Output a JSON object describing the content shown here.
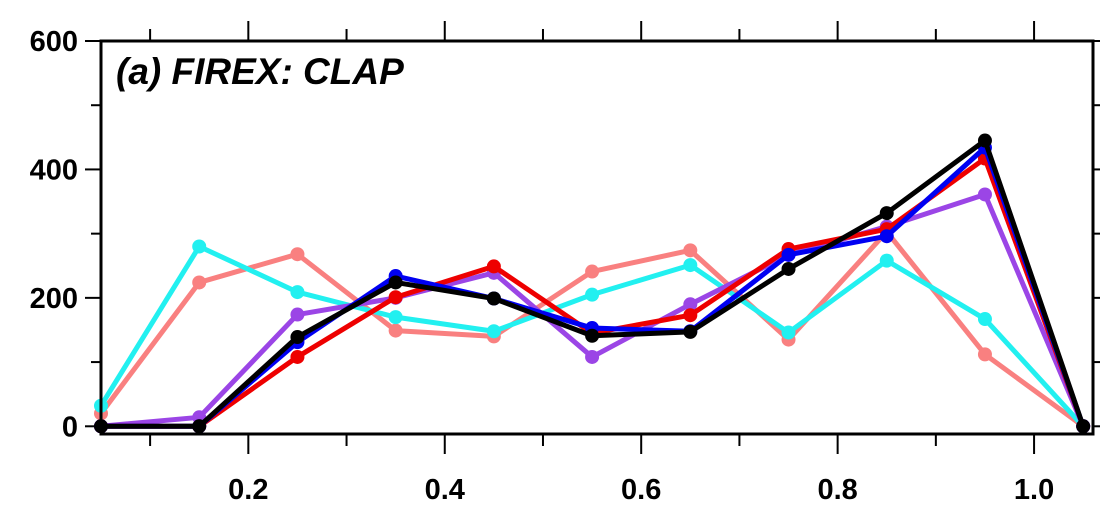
{
  "chart_data": {
    "type": "line",
    "title": "(a) FIREX: CLAP",
    "xlabel": "",
    "ylabel": "",
    "xlim": [
      0.05,
      1.06
    ],
    "ylim": [
      -12,
      600
    ],
    "x_ticks": [
      0.2,
      0.4,
      0.6,
      0.8,
      1.0
    ],
    "x_tick_labels": [
      "0.2",
      "0.4",
      "0.6",
      "0.8",
      "1.0"
    ],
    "y_ticks": [
      0,
      200,
      400,
      600
    ],
    "y_tick_labels": [
      "0",
      "200",
      "400",
      "600"
    ],
    "grid": false,
    "legend": "none",
    "x": [
      0.05,
      0.15,
      0.25,
      0.35,
      0.45,
      0.55,
      0.65,
      0.75,
      0.85,
      0.95,
      1.05
    ],
    "series": [
      {
        "color": "#f98080",
        "values": [
          20,
          224,
          268,
          149,
          140,
          241,
          274,
          135,
          303,
          112,
          0
        ]
      },
      {
        "color": "#22f0f0",
        "values": [
          32,
          280,
          209,
          170,
          148,
          205,
          251,
          146,
          258,
          167,
          0
        ]
      },
      {
        "color": "#9b45e6",
        "values": [
          0,
          14,
          174,
          200,
          239,
          108,
          190,
          267,
          311,
          361,
          0
        ]
      },
      {
        "color": "#ee0000",
        "values": [
          0,
          0,
          108,
          201,
          249,
          145,
          173,
          276,
          307,
          417,
          0
        ]
      },
      {
        "color": "#0000f2",
        "values": [
          0,
          0,
          131,
          234,
          199,
          153,
          148,
          267,
          296,
          434,
          0
        ]
      },
      {
        "color": "#000000",
        "values": [
          0,
          0,
          139,
          224,
          199,
          141,
          147,
          245,
          332,
          445,
          0
        ]
      }
    ]
  }
}
